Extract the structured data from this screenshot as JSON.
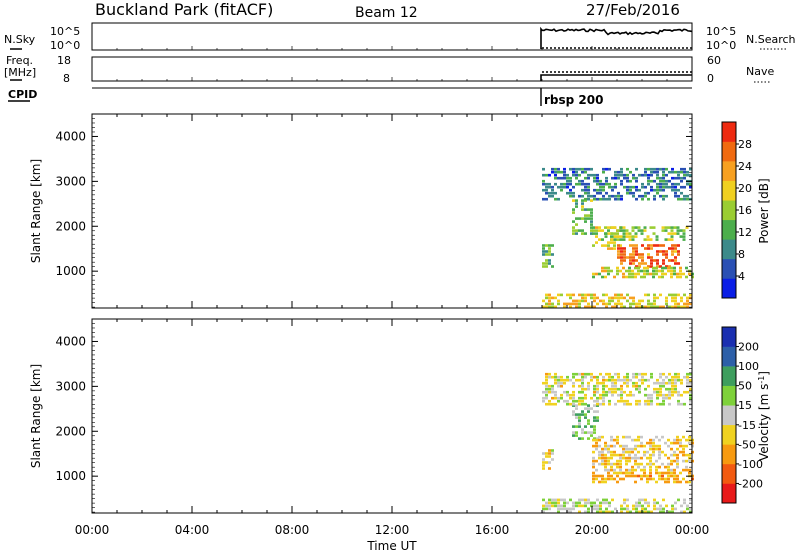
{
  "header": {
    "station": "Buckland Park (fitACF)",
    "beam": "Beam 12",
    "date": "27/Feb/2016"
  },
  "panels": {
    "nsky_label": "N.Sky",
    "nsky_top": "10^5",
    "nsky_bottom": "10^0",
    "nsearch_label": "N.Search",
    "nsearch_top": "10^5",
    "nsearch_bottom": "10^0",
    "freq_label_1": "Freq.",
    "freq_label_2": "[MHz]",
    "freq_top": "18",
    "freq_bottom": "8",
    "nave_label": "Nave",
    "nave_top": "60",
    "nave_bottom": "0",
    "cpid_label": "CPID",
    "cpid_value": "rbsp 200"
  },
  "colors": {
    "power": [
      "#0a1ee6",
      "#2a50b4",
      "#3c8a8a",
      "#4cae4c",
      "#9acd32",
      "#f0d020",
      "#f7a020",
      "#f06a10",
      "#ee2a10"
    ],
    "velocity": [
      "#e81a1a",
      "#f25a10",
      "#f79a10",
      "#f0d220",
      "#c8c8c8",
      "#7ed13a",
      "#3e9e5e",
      "#2c5fa8",
      "#1a2fb0"
    ]
  },
  "chart_data": [
    {
      "type": "heatmap",
      "title": "",
      "xlabel": "",
      "ylabel": "Slant Range [km]",
      "colorbar_label": "Power [dB]",
      "colorbar_ticks": [
        "4",
        "8",
        "12",
        "16",
        "20",
        "24",
        "28"
      ],
      "xlim": [
        0,
        24
      ],
      "ylim": [
        180,
        4500
      ],
      "x_ticks": [
        "00:00",
        "04:00",
        "08:00",
        "12:00",
        "16:00",
        "20:00",
        "00:00"
      ],
      "y_ticks": [
        "1000",
        "2000",
        "3000",
        "4000"
      ],
      "regions": [
        {
          "x": [
            18.0,
            24.0
          ],
          "y": [
            200,
            500
          ],
          "value": 20
        },
        {
          "x": [
            19.2,
            20.0
          ],
          "y": [
            1800,
            2600
          ],
          "value": 14
        },
        {
          "x": [
            20.0,
            21.2
          ],
          "y": [
            1500,
            2000
          ],
          "value": 18
        },
        {
          "x": [
            21.0,
            23.5
          ],
          "y": [
            1100,
            1600
          ],
          "value": 26
        },
        {
          "x": [
            20.5,
            23.8
          ],
          "y": [
            1700,
            2000
          ],
          "value": 16
        },
        {
          "x": [
            20.0,
            24.0
          ],
          "y": [
            850,
            1100
          ],
          "value": 18
        },
        {
          "x": [
            18.0,
            18.4
          ],
          "y": [
            1100,
            1600
          ],
          "value": 12
        },
        {
          "x": [
            18.0,
            24.0
          ],
          "y": [
            2600,
            3300
          ],
          "value": 8
        }
      ]
    },
    {
      "type": "heatmap",
      "title": "",
      "xlabel": "Time UT",
      "ylabel": "Slant Range [km]",
      "colorbar_label": "Velocity [m s^-1]",
      "colorbar_ticks": [
        "-200",
        "-100",
        "-50",
        "-15",
        "15",
        "50",
        "100",
        "200"
      ],
      "xlim": [
        0,
        24
      ],
      "ylim": [
        180,
        4500
      ],
      "x_ticks": [
        "00:00",
        "04:00",
        "08:00",
        "12:00",
        "16:00",
        "20:00",
        "00:00"
      ],
      "y_ticks": [
        "1000",
        "2000",
        "3000",
        "4000"
      ],
      "regions": [
        {
          "x": [
            18.0,
            24.0
          ],
          "y": [
            200,
            500
          ],
          "value": 0
        },
        {
          "x": [
            19.2,
            20.2
          ],
          "y": [
            1800,
            2600
          ],
          "value": 30
        },
        {
          "x": [
            20.0,
            24.0
          ],
          "y": [
            1100,
            1900
          ],
          "value": -30
        },
        {
          "x": [
            20.0,
            24.0
          ],
          "y": [
            850,
            1100
          ],
          "value": -60
        },
        {
          "x": [
            18.0,
            18.4
          ],
          "y": [
            1100,
            1600
          ],
          "value": -20
        },
        {
          "x": [
            18.0,
            24.0
          ],
          "y": [
            2600,
            3300
          ],
          "value": -10
        }
      ]
    }
  ]
}
